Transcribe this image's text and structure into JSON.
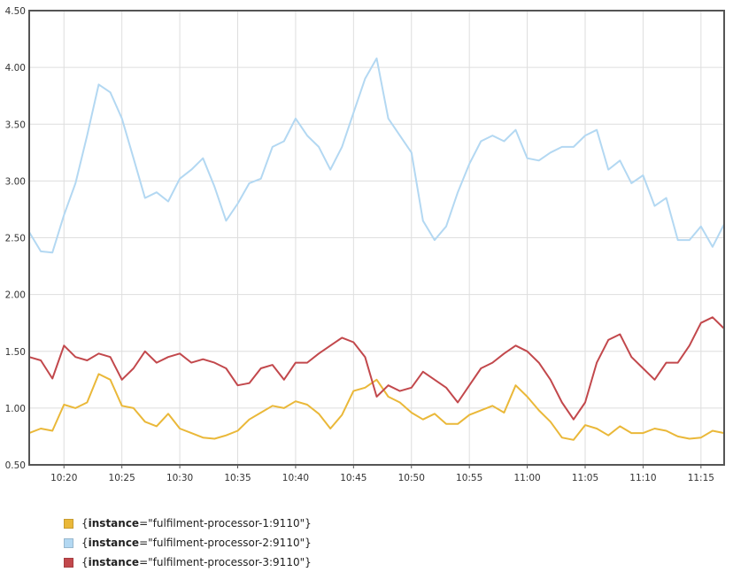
{
  "chart_data": {
    "type": "line",
    "title": "",
    "xlabel": "",
    "ylabel": "",
    "xlim": [
      "10:17",
      "11:17"
    ],
    "ylim": [
      0.5,
      4.5
    ],
    "x_ticks": [
      "10:20",
      "10:25",
      "10:30",
      "10:35",
      "10:40",
      "10:45",
      "10:50",
      "10:55",
      "11:00",
      "11:05",
      "11:10",
      "11:15"
    ],
    "y_ticks": [
      "0.50",
      "1.00",
      "1.50",
      "2.00",
      "2.50",
      "3.00",
      "3.50",
      "4.00",
      "4.50"
    ],
    "grid": true,
    "legend_position": "bottom-left",
    "series": [
      {
        "color": "#eab839",
        "legend_open": "{",
        "label_key": "instance",
        "label_value": "=\"fulfilment-processor-1:9110\"}",
        "points": [
          [
            "10:17",
            0.78
          ],
          [
            "10:18",
            0.82
          ],
          [
            "10:19",
            0.8
          ],
          [
            "10:20",
            1.03
          ],
          [
            "10:21",
            1.0
          ],
          [
            "10:22",
            1.05
          ],
          [
            "10:23",
            1.3
          ],
          [
            "10:24",
            1.25
          ],
          [
            "10:25",
            1.02
          ],
          [
            "10:26",
            1.0
          ],
          [
            "10:27",
            0.88
          ],
          [
            "10:28",
            0.84
          ],
          [
            "10:29",
            0.95
          ],
          [
            "10:30",
            0.82
          ],
          [
            "10:31",
            0.78
          ],
          [
            "10:32",
            0.74
          ],
          [
            "10:33",
            0.73
          ],
          [
            "10:34",
            0.76
          ],
          [
            "10:35",
            0.8
          ],
          [
            "10:36",
            0.9
          ],
          [
            "10:37",
            0.96
          ],
          [
            "10:38",
            1.02
          ],
          [
            "10:39",
            1.0
          ],
          [
            "10:40",
            1.06
          ],
          [
            "10:41",
            1.03
          ],
          [
            "10:42",
            0.95
          ],
          [
            "10:43",
            0.82
          ],
          [
            "10:44",
            0.94
          ],
          [
            "10:45",
            1.15
          ],
          [
            "10:46",
            1.18
          ],
          [
            "10:47",
            1.25
          ],
          [
            "10:48",
            1.1
          ],
          [
            "10:49",
            1.05
          ],
          [
            "10:50",
            0.96
          ],
          [
            "10:51",
            0.9
          ],
          [
            "10:52",
            0.95
          ],
          [
            "10:53",
            0.86
          ],
          [
            "10:54",
            0.86
          ],
          [
            "10:55",
            0.94
          ],
          [
            "10:56",
            0.98
          ],
          [
            "10:57",
            1.02
          ],
          [
            "10:58",
            0.96
          ],
          [
            "10:59",
            1.2
          ],
          [
            "11:00",
            1.1
          ],
          [
            "11:01",
            0.98
          ],
          [
            "11:02",
            0.88
          ],
          [
            "11:03",
            0.74
          ],
          [
            "11:04",
            0.72
          ],
          [
            "11:05",
            0.85
          ],
          [
            "11:06",
            0.82
          ],
          [
            "11:07",
            0.76
          ],
          [
            "11:08",
            0.84
          ],
          [
            "11:09",
            0.78
          ],
          [
            "11:10",
            0.78
          ],
          [
            "11:11",
            0.82
          ],
          [
            "11:12",
            0.8
          ],
          [
            "11:13",
            0.75
          ],
          [
            "11:14",
            0.73
          ],
          [
            "11:15",
            0.74
          ],
          [
            "11:16",
            0.8
          ],
          [
            "11:17",
            0.78
          ]
        ]
      },
      {
        "color": "#b3d8f2",
        "legend_open": "{",
        "label_key": "instance",
        "label_value": "=\"fulfilment-processor-2:9110\"}",
        "points": [
          [
            "10:17",
            2.55
          ],
          [
            "10:18",
            2.38
          ],
          [
            "10:19",
            2.37
          ],
          [
            "10:20",
            2.7
          ],
          [
            "10:21",
            2.98
          ],
          [
            "10:22",
            3.4
          ],
          [
            "10:23",
            3.85
          ],
          [
            "10:24",
            3.78
          ],
          [
            "10:25",
            3.55
          ],
          [
            "10:26",
            3.2
          ],
          [
            "10:27",
            2.85
          ],
          [
            "10:28",
            2.9
          ],
          [
            "10:29",
            2.82
          ],
          [
            "10:30",
            3.02
          ],
          [
            "10:31",
            3.1
          ],
          [
            "10:32",
            3.2
          ],
          [
            "10:33",
            2.95
          ],
          [
            "10:34",
            2.65
          ],
          [
            "10:35",
            2.8
          ],
          [
            "10:36",
            2.98
          ],
          [
            "10:37",
            3.02
          ],
          [
            "10:38",
            3.3
          ],
          [
            "10:39",
            3.35
          ],
          [
            "10:40",
            3.55
          ],
          [
            "10:41",
            3.4
          ],
          [
            "10:42",
            3.3
          ],
          [
            "10:43",
            3.1
          ],
          [
            "10:44",
            3.3
          ],
          [
            "10:45",
            3.6
          ],
          [
            "10:46",
            3.9
          ],
          [
            "10:47",
            4.08
          ],
          [
            "10:48",
            3.55
          ],
          [
            "10:49",
            3.4
          ],
          [
            "10:50",
            3.25
          ],
          [
            "10:51",
            2.65
          ],
          [
            "10:52",
            2.48
          ],
          [
            "10:53",
            2.6
          ],
          [
            "10:54",
            2.9
          ],
          [
            "10:55",
            3.15
          ],
          [
            "10:56",
            3.35
          ],
          [
            "10:57",
            3.4
          ],
          [
            "10:58",
            3.35
          ],
          [
            "10:59",
            3.45
          ],
          [
            "11:00",
            3.2
          ],
          [
            "11:01",
            3.18
          ],
          [
            "11:02",
            3.25
          ],
          [
            "11:03",
            3.3
          ],
          [
            "11:04",
            3.3
          ],
          [
            "11:05",
            3.4
          ],
          [
            "11:06",
            3.45
          ],
          [
            "11:07",
            3.1
          ],
          [
            "11:08",
            3.18
          ],
          [
            "11:09",
            2.98
          ],
          [
            "11:10",
            3.05
          ],
          [
            "11:11",
            2.78
          ],
          [
            "11:12",
            2.85
          ],
          [
            "11:13",
            2.48
          ],
          [
            "11:14",
            2.48
          ],
          [
            "11:15",
            2.6
          ],
          [
            "11:16",
            2.42
          ],
          [
            "11:17",
            2.62
          ]
        ]
      },
      {
        "color": "#c2484c",
        "legend_open": "{",
        "label_key": "instance",
        "label_value": "=\"fulfilment-processor-3:9110\"}",
        "points": [
          [
            "10:17",
            1.45
          ],
          [
            "10:18",
            1.42
          ],
          [
            "10:19",
            1.26
          ],
          [
            "10:20",
            1.55
          ],
          [
            "10:21",
            1.45
          ],
          [
            "10:22",
            1.42
          ],
          [
            "10:23",
            1.48
          ],
          [
            "10:24",
            1.45
          ],
          [
            "10:25",
            1.25
          ],
          [
            "10:26",
            1.35
          ],
          [
            "10:27",
            1.5
          ],
          [
            "10:28",
            1.4
          ],
          [
            "10:29",
            1.45
          ],
          [
            "10:30",
            1.48
          ],
          [
            "10:31",
            1.4
          ],
          [
            "10:32",
            1.43
          ],
          [
            "10:33",
            1.4
          ],
          [
            "10:34",
            1.35
          ],
          [
            "10:35",
            1.2
          ],
          [
            "10:36",
            1.22
          ],
          [
            "10:37",
            1.35
          ],
          [
            "10:38",
            1.38
          ],
          [
            "10:39",
            1.25
          ],
          [
            "10:40",
            1.4
          ],
          [
            "10:41",
            1.4
          ],
          [
            "10:42",
            1.48
          ],
          [
            "10:43",
            1.55
          ],
          [
            "10:44",
            1.62
          ],
          [
            "10:45",
            1.58
          ],
          [
            "10:46",
            1.45
          ],
          [
            "10:47",
            1.1
          ],
          [
            "10:48",
            1.2
          ],
          [
            "10:49",
            1.15
          ],
          [
            "10:50",
            1.18
          ],
          [
            "10:51",
            1.32
          ],
          [
            "10:52",
            1.25
          ],
          [
            "10:53",
            1.18
          ],
          [
            "10:54",
            1.05
          ],
          [
            "10:55",
            1.2
          ],
          [
            "10:56",
            1.35
          ],
          [
            "10:57",
            1.4
          ],
          [
            "10:58",
            1.48
          ],
          [
            "10:59",
            1.55
          ],
          [
            "11:00",
            1.5
          ],
          [
            "11:01",
            1.4
          ],
          [
            "11:02",
            1.25
          ],
          [
            "11:03",
            1.05
          ],
          [
            "11:04",
            0.9
          ],
          [
            "11:05",
            1.05
          ],
          [
            "11:06",
            1.4
          ],
          [
            "11:07",
            1.6
          ],
          [
            "11:08",
            1.65
          ],
          [
            "11:09",
            1.45
          ],
          [
            "11:10",
            1.35
          ],
          [
            "11:11",
            1.25
          ],
          [
            "11:12",
            1.4
          ],
          [
            "11:13",
            1.4
          ],
          [
            "11:14",
            1.55
          ],
          [
            "11:15",
            1.75
          ],
          [
            "11:16",
            1.8
          ],
          [
            "11:17",
            1.7
          ]
        ]
      }
    ]
  }
}
